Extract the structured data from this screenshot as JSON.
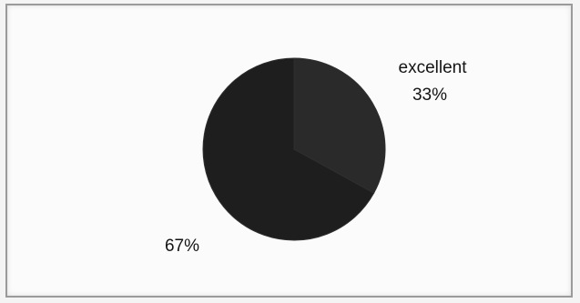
{
  "chart_data": {
    "type": "pie",
    "categories": [
      "excellent",
      ""
    ],
    "values": [
      33,
      67
    ],
    "data_labels": [
      {
        "category": "excellent",
        "value": "33%"
      },
      {
        "category": "",
        "value": "67%"
      }
    ],
    "colors": [
      "#2a2a2a",
      "#1e1e1e"
    ],
    "legend": "none"
  }
}
